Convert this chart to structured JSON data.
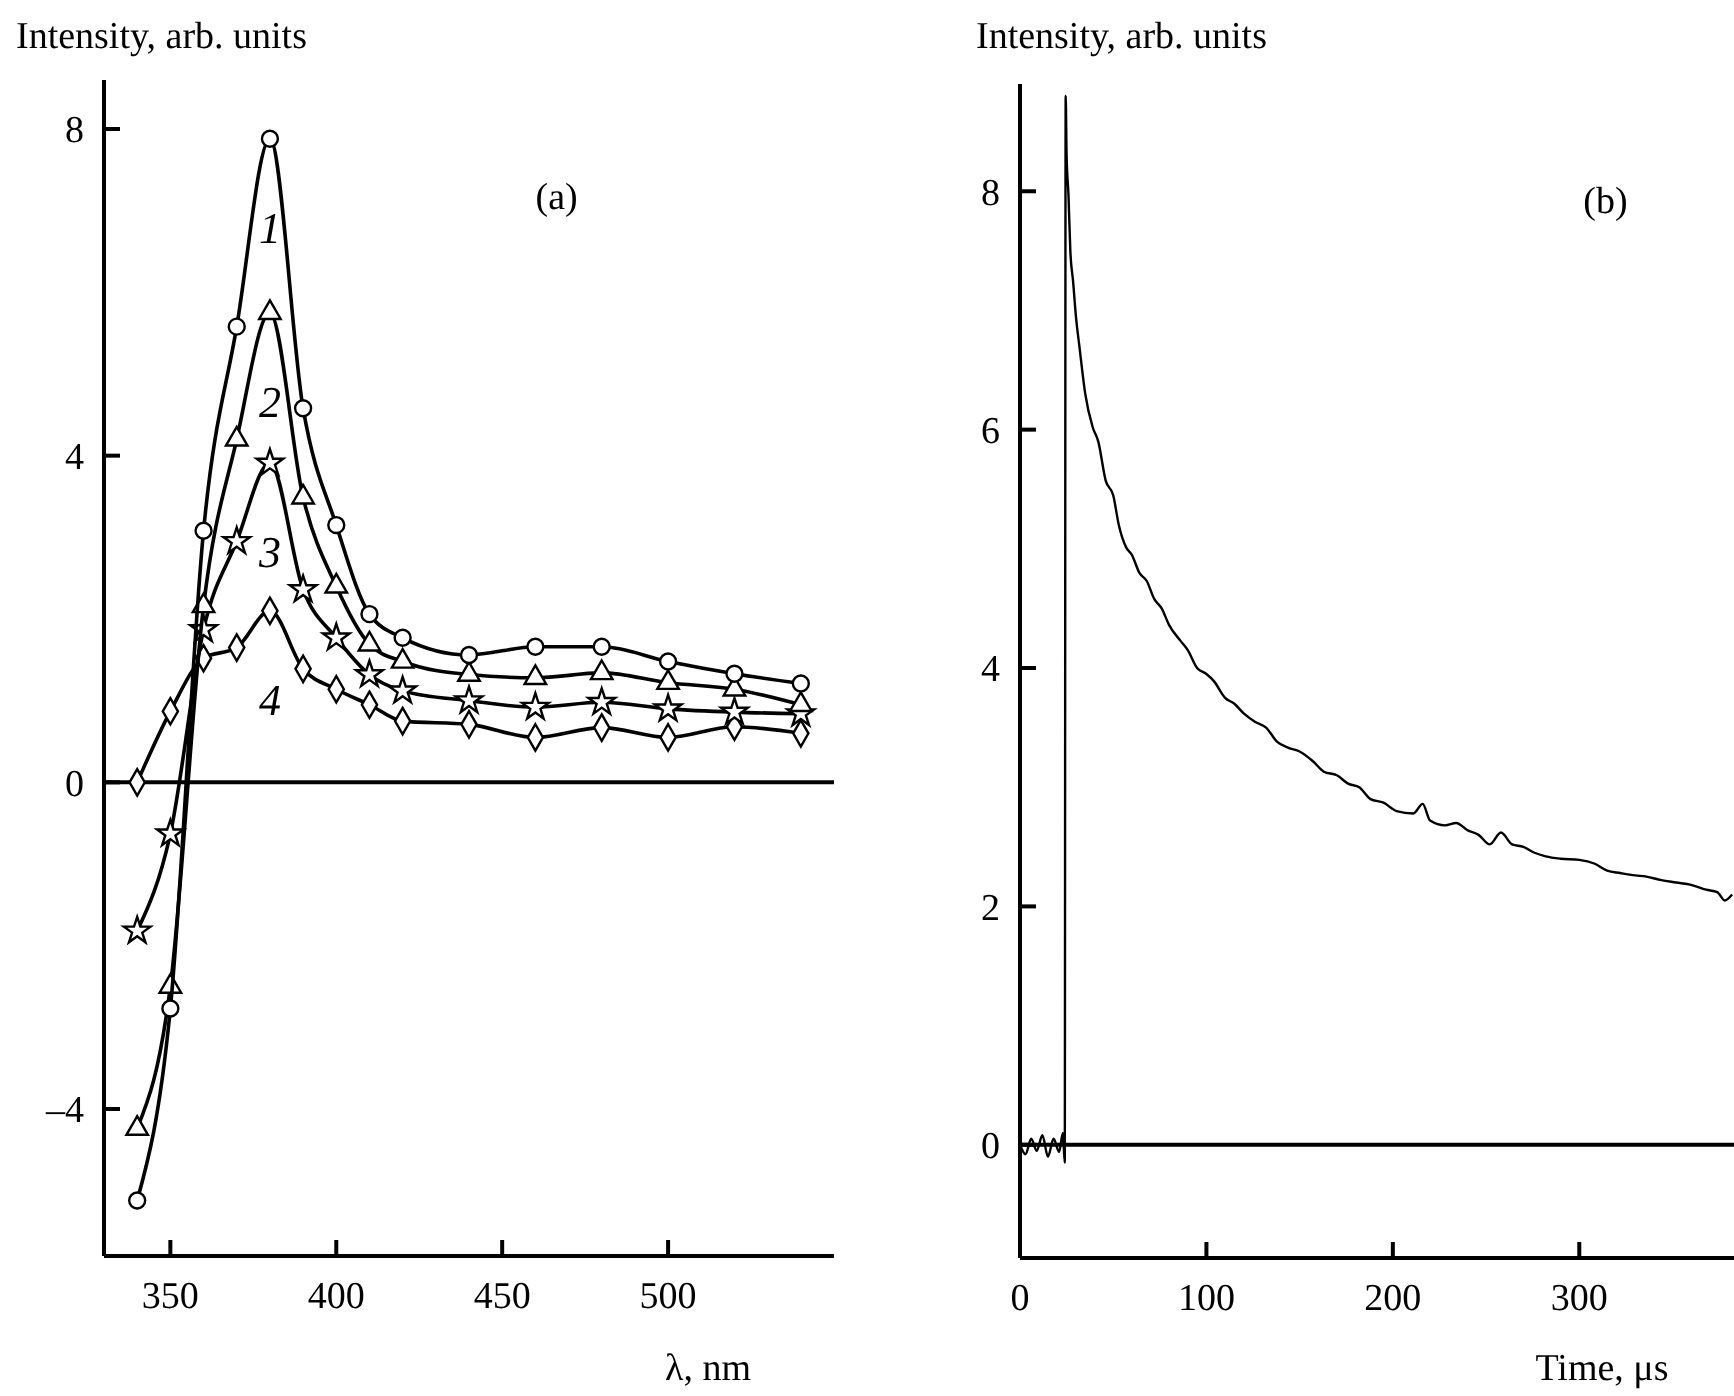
{
  "chart_data": [
    {
      "type": "line",
      "ylabel": "Intensity, arb. units",
      "xlabel": "λ, nm",
      "annotations": [
        "(a)"
      ],
      "x": [
        340,
        350,
        360,
        370,
        380,
        390,
        400,
        410,
        420,
        440,
        460,
        480,
        500,
        520,
        540
      ],
      "xlim": [
        330,
        550
      ],
      "xticks": [
        350,
        400,
        450,
        500
      ],
      "ylim": [
        -5.8,
        8.6
      ],
      "yticks": [
        {
          "value": -4,
          "label": "–4"
        },
        0,
        4,
        8
      ],
      "ref_lines": [
        {
          "axis": "y",
          "value": 0,
          "color": "#000000"
        }
      ],
      "series": [
        {
          "name": "1",
          "color": "#000000",
          "marker": "circle",
          "values": [
            -5.12,
            -2.77,
            3.08,
            5.58,
            7.88,
            4.58,
            3.15,
            2.06,
            1.77,
            1.56,
            1.66,
            1.66,
            1.48,
            1.33,
            1.21
          ]
        },
        {
          "name": "2",
          "color": "#000000",
          "marker": "triangle",
          "values": [
            -4.24,
            -2.5,
            2.16,
            4.2,
            5.75,
            3.49,
            2.4,
            1.69,
            1.48,
            1.32,
            1.28,
            1.34,
            1.22,
            1.14,
            0.95
          ]
        },
        {
          "name": "3",
          "color": "#000000",
          "marker": "star",
          "values": [
            -1.82,
            -0.63,
            1.87,
            2.95,
            3.91,
            2.36,
            1.77,
            1.32,
            1.12,
            1.0,
            0.92,
            0.98,
            0.9,
            0.86,
            0.84
          ]
        },
        {
          "name": "4",
          "color": "#000000",
          "marker": "diamond",
          "values": [
            0.0,
            0.87,
            1.52,
            1.65,
            2.1,
            1.39,
            1.14,
            0.95,
            0.75,
            0.71,
            0.55,
            0.67,
            0.55,
            0.68,
            0.6
          ]
        }
      ]
    },
    {
      "type": "line",
      "ylabel": "Intensity, arb. units",
      "xlabel": "Time, μs",
      "annotations": [
        "(b)"
      ],
      "xlim": [
        0,
        383
      ],
      "xticks": [
        0,
        100,
        200,
        300
      ],
      "ylim": [
        -0.95,
        8.9
      ],
      "yticks": [
        0,
        2,
        4,
        6,
        8
      ],
      "ref_lines": [
        {
          "axis": "y",
          "value": 0,
          "color": "#000000"
        }
      ],
      "marker": "none",
      "series": [
        {
          "color": "#000000",
          "x": [
            0,
            3,
            6,
            9,
            12,
            15,
            18,
            21,
            23,
            24,
            24.5,
            25,
            26,
            27,
            28.5,
            30,
            32,
            35,
            39,
            42,
            46,
            50,
            53,
            57,
            60,
            64,
            68,
            72,
            76,
            80,
            86,
            90,
            95,
            100,
            104,
            110,
            115,
            120,
            126,
            132,
            138,
            144,
            150,
            157,
            163,
            170,
            176,
            182,
            188,
            195,
            202,
            211,
            216,
            220,
            228,
            234,
            240,
            246,
            252,
            258,
            264,
            270,
            276,
            282,
            290,
            300,
            308,
            315,
            322,
            330,
            336,
            344,
            352,
            360,
            368,
            374,
            378,
            382
          ],
          "values": [
            0.0,
            -0.08,
            0.05,
            -0.05,
            0.08,
            -0.1,
            0.05,
            -0.06,
            0.1,
            -0.15,
            8.8,
            8.3,
            7.97,
            7.5,
            7.24,
            6.95,
            6.68,
            6.3,
            6.02,
            5.9,
            5.57,
            5.45,
            5.2,
            5.01,
            4.95,
            4.8,
            4.73,
            4.58,
            4.5,
            4.36,
            4.23,
            4.15,
            4.0,
            3.95,
            3.89,
            3.75,
            3.7,
            3.62,
            3.55,
            3.5,
            3.38,
            3.33,
            3.3,
            3.22,
            3.13,
            3.1,
            3.03,
            3.0,
            2.9,
            2.87,
            2.8,
            2.78,
            2.86,
            2.72,
            2.68,
            2.7,
            2.64,
            2.6,
            2.52,
            2.62,
            2.52,
            2.5,
            2.45,
            2.42,
            2.4,
            2.39,
            2.36,
            2.3,
            2.28,
            2.26,
            2.25,
            2.22,
            2.2,
            2.18,
            2.14,
            2.12,
            2.05,
            2.1
          ]
        }
      ]
    }
  ]
}
